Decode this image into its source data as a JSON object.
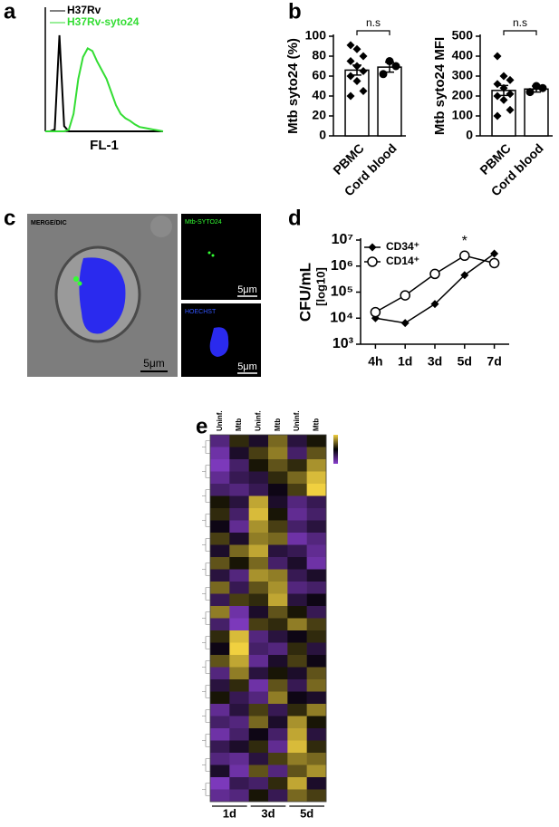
{
  "panel_letters": [
    "a",
    "b",
    "c",
    "d",
    "e"
  ],
  "micrograph": {
    "panels": [
      {
        "label": "MERGE/DIC",
        "scale_bar": "5μm"
      },
      {
        "label": "Mtb-SYTO24",
        "scale_bar": "5μm"
      },
      {
        "label": "HOECHST",
        "scale_bar": "5μm"
      }
    ]
  },
  "chart_data": [
    {
      "type": "line",
      "x_label": "FL-1",
      "x": [
        0,
        4,
        8,
        12,
        16,
        20,
        24,
        28,
        32,
        36,
        40,
        44,
        48,
        52,
        56,
        60,
        64,
        68,
        72,
        76,
        80,
        84,
        88,
        92,
        96,
        100
      ],
      "xlim": [
        0,
        100
      ],
      "ylim": [
        0,
        140
      ],
      "series": [
        {
          "name": "H37Rv",
          "color": "#000000",
          "values": [
            0,
            0,
            2,
            110,
            6,
            0,
            0,
            0,
            0,
            0,
            0,
            0,
            0,
            0,
            0,
            0,
            0,
            0,
            0,
            0,
            0,
            0,
            0,
            0,
            0,
            0
          ]
        },
        {
          "name": "H37Rv-syto24",
          "color": "#33dd33",
          "values": [
            0,
            0,
            0,
            0,
            0,
            2,
            20,
            60,
            85,
            95,
            92,
            80,
            70,
            60,
            45,
            30,
            20,
            15,
            12,
            8,
            5,
            4,
            3,
            2,
            1,
            0
          ]
        }
      ]
    },
    {
      "type": "bar",
      "y_label": "Mtb syto24 (%)",
      "annotation": "n.s",
      "categories": [
        "PBMC",
        "Cord blood"
      ],
      "values": [
        66,
        69
      ],
      "errors": [
        5,
        5
      ],
      "markers": [
        "diamond",
        "circle"
      ],
      "points": [
        [
          91,
          87,
          80,
          75,
          70,
          65,
          60,
          55,
          45,
          40
        ],
        [
          62,
          75,
          70
        ]
      ],
      "ylim": [
        0,
        100
      ],
      "yticks": [
        0,
        20,
        40,
        60,
        80,
        100
      ]
    },
    {
      "type": "bar",
      "y_label": "Mtb syto24 MFI",
      "annotation": "n.s",
      "categories": [
        "PBMC",
        "Cord blood"
      ],
      "values": [
        228,
        235
      ],
      "errors": [
        25,
        15
      ],
      "markers": [
        "diamond",
        "circle"
      ],
      "points": [
        [
          400,
          300,
          280,
          260,
          240,
          210,
          200,
          180,
          130,
          100
        ],
        [
          220,
          250,
          240
        ]
      ],
      "ylim": [
        0,
        500
      ],
      "yticks": [
        0,
        100,
        200,
        300,
        400,
        500
      ]
    },
    {
      "type": "line",
      "y_label": "CFU/mL",
      "y_label_unit": "[log10]",
      "annotation": "*",
      "log": true,
      "categories": [
        "4h",
        "1d",
        "3d",
        "5d",
        "7d"
      ],
      "ylim": [
        1000,
        10000000
      ],
      "yticks": [
        {
          "value": 1000,
          "label": "10³"
        },
        {
          "value": 10000,
          "label": "10⁴"
        },
        {
          "value": 100000,
          "label": "10⁵"
        },
        {
          "value": 1000000,
          "label": "10⁶"
        },
        {
          "value": 10000000,
          "label": "10⁷"
        }
      ],
      "series": [
        {
          "name": "CD34⁺",
          "color": "#000000",
          "marker": "diamond",
          "values": [
            10000,
            6500,
            35000,
            450000,
            3000000
          ]
        },
        {
          "name": "CD14⁺",
          "color": "#000000",
          "marker": "open-circle",
          "values": [
            17000,
            75000,
            500000,
            2500000,
            1300000
          ]
        }
      ]
    },
    {
      "type": "heatmap",
      "column_labels": [
        "Uninf.",
        "Mtb",
        "Uninf.",
        "Mtb",
        "Uninf.",
        "Mtb"
      ],
      "groups": [
        "1d",
        "3d",
        "5d"
      ],
      "zlim": [
        -1,
        1
      ],
      "matrix": [
        [
          -0.6,
          0.2,
          -0.2,
          0.5,
          -0.3,
          0.1
        ],
        [
          -0.8,
          -0.2,
          0.3,
          0.6,
          -0.5,
          0.4
        ],
        [
          -0.9,
          -0.5,
          0.1,
          0.4,
          0.2,
          0.7
        ],
        [
          -0.7,
          -0.4,
          -0.3,
          0.2,
          0.5,
          0.9
        ],
        [
          -0.5,
          -0.6,
          -0.4,
          -0.1,
          0.3,
          1.0
        ],
        [
          0.1,
          -0.3,
          0.8,
          -0.2,
          -0.6,
          -0.4
        ],
        [
          0.2,
          -0.5,
          0.9,
          0.1,
          -0.7,
          -0.5
        ],
        [
          -0.1,
          -0.7,
          0.7,
          0.3,
          -0.5,
          -0.3
        ],
        [
          0.3,
          -0.2,
          0.6,
          0.5,
          -0.8,
          -0.6
        ],
        [
          -0.2,
          0.5,
          0.8,
          -0.3,
          -0.4,
          -0.7
        ],
        [
          0.4,
          0.1,
          0.5,
          -0.5,
          -0.2,
          -0.8
        ],
        [
          -0.3,
          -0.6,
          0.7,
          0.6,
          -0.4,
          -0.2
        ],
        [
          0.5,
          -0.4,
          0.4,
          0.7,
          -0.6,
          -0.5
        ],
        [
          -0.4,
          0.3,
          0.2,
          0.8,
          -0.3,
          -0.1
        ],
        [
          0.6,
          -0.8,
          -0.2,
          0.4,
          0.1,
          -0.4
        ],
        [
          -0.5,
          -0.9,
          0.3,
          0.2,
          0.6,
          0.3
        ],
        [
          0.2,
          0.9,
          -0.6,
          -0.3,
          -0.1,
          0.2
        ],
        [
          -0.1,
          1.0,
          -0.5,
          -0.6,
          0.2,
          -0.3
        ],
        [
          0.4,
          0.8,
          -0.7,
          -0.2,
          0.3,
          -0.1
        ],
        [
          -0.6,
          0.6,
          -0.3,
          0.1,
          -0.2,
          0.4
        ],
        [
          -0.3,
          0.2,
          -0.8,
          0.4,
          -0.4,
          0.5
        ],
        [
          0.1,
          -0.4,
          -0.6,
          0.6,
          -0.1,
          -0.2
        ],
        [
          -0.7,
          -0.3,
          0.3,
          -0.4,
          0.2,
          0.6
        ],
        [
          -0.5,
          -0.6,
          0.5,
          -0.2,
          0.7,
          0.1
        ],
        [
          -0.8,
          -0.5,
          -0.1,
          -0.5,
          0.8,
          -0.3
        ],
        [
          -0.4,
          -0.2,
          0.2,
          -0.7,
          0.9,
          0.2
        ],
        [
          -0.6,
          -0.7,
          -0.3,
          0.3,
          0.6,
          0.5
        ],
        [
          -0.2,
          -0.8,
          0.4,
          -0.6,
          0.4,
          0.7
        ],
        [
          -0.9,
          -0.4,
          -0.5,
          0.2,
          0.8,
          -0.2
        ],
        [
          -0.7,
          -0.6,
          0.1,
          -0.4,
          0.5,
          0.3
        ]
      ]
    }
  ]
}
